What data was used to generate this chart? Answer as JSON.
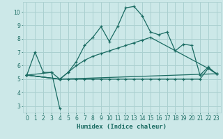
{
  "xlabel": "Humidex (Indice chaleur)",
  "ylabel": "",
  "xlim": [
    -0.5,
    23.5
  ],
  "ylim": [
    2.5,
    10.7
  ],
  "yticks": [
    3,
    4,
    5,
    6,
    7,
    8,
    9,
    10
  ],
  "xticks": [
    0,
    1,
    2,
    3,
    4,
    5,
    6,
    7,
    8,
    9,
    10,
    11,
    12,
    13,
    14,
    15,
    16,
    17,
    18,
    19,
    20,
    21,
    22,
    23
  ],
  "bg_color": "#cce8e8",
  "grid_color": "#aad0d0",
  "line_color": "#1a6b62",
  "series": [
    {
      "x": [
        0,
        1,
        2,
        3,
        4,
        5,
        6,
        7,
        8,
        9,
        10,
        11,
        12,
        13,
        14,
        15,
        16,
        17,
        18,
        19,
        20,
        21,
        22,
        23
      ],
      "y": [
        5.3,
        7.0,
        5.5,
        5.5,
        5.0,
        5.5,
        6.3,
        7.5,
        8.1,
        8.9,
        7.8,
        8.9,
        10.3,
        10.4,
        9.7,
        8.5,
        8.3,
        8.5,
        7.1,
        7.6,
        7.5,
        5.3,
        5.9,
        5.4
      ]
    },
    {
      "x": [
        0,
        4,
        23
      ],
      "y": [
        5.3,
        5.0,
        5.4
      ]
    },
    {
      "x": [
        0,
        4,
        5,
        6,
        7,
        8,
        9,
        10,
        11,
        12,
        13,
        14,
        15,
        22,
        23
      ],
      "y": [
        5.3,
        5.0,
        5.5,
        6.0,
        6.4,
        6.7,
        6.9,
        7.1,
        7.3,
        7.5,
        7.7,
        7.9,
        8.1,
        5.8,
        5.4
      ]
    },
    {
      "x": [
        0,
        4,
        5,
        6,
        7,
        8,
        9,
        10,
        11,
        12,
        13,
        14,
        15,
        16,
        17,
        18,
        19,
        20,
        21,
        22,
        23
      ],
      "y": [
        5.3,
        5.0,
        5.0,
        5.0,
        5.0,
        5.0,
        5.0,
        5.0,
        5.0,
        5.0,
        5.0,
        5.0,
        5.0,
        5.0,
        5.0,
        5.0,
        5.0,
        5.0,
        5.0,
        5.8,
        5.4
      ]
    },
    {
      "x": [
        0,
        3,
        4
      ],
      "y": [
        5.3,
        5.5,
        2.8
      ]
    }
  ]
}
